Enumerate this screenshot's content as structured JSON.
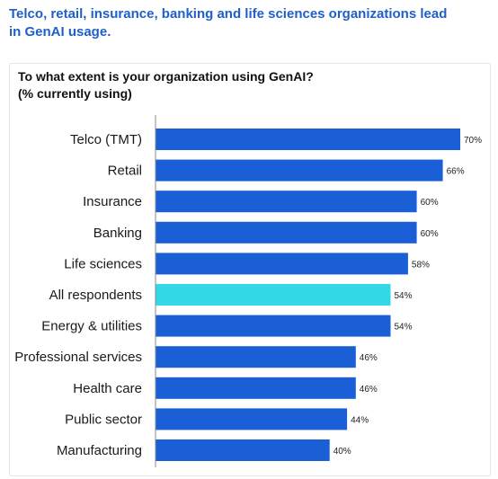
{
  "headline": "Telco, retail, insurance, banking and life sciences organizations lead in GenAI usage.",
  "question_line1": "To what extent is your organization using GenAI?",
  "question_line2": "(% currently using)",
  "colors": {
    "headline": "#1f5fc7",
    "bar": "#1a5fd6",
    "highlight_bar": "#33d8e6",
    "axis": "#8a8a8a"
  },
  "chart_data": {
    "type": "bar",
    "orientation": "horizontal",
    "title": "To what extent is your organization using GenAI? (% currently using)",
    "categories": [
      "Telco (TMT)",
      "Retail",
      "Insurance",
      "Banking",
      "Life sciences",
      "All respondents",
      "Energy &  utilities",
      "Professional services",
      "Health care",
      "Public sector",
      "Manufacturing"
    ],
    "values": [
      70,
      66,
      60,
      60,
      58,
      54,
      54,
      46,
      46,
      44,
      40
    ],
    "value_labels": [
      "70%",
      "66%",
      "60%",
      "60%",
      "58%",
      "54%",
      "54%",
      "46%",
      "46%",
      "44%",
      "40%"
    ],
    "highlight_category": "All respondents",
    "unit": "%",
    "xlim": [
      0,
      70
    ],
    "grid": false,
    "legend": "none"
  }
}
